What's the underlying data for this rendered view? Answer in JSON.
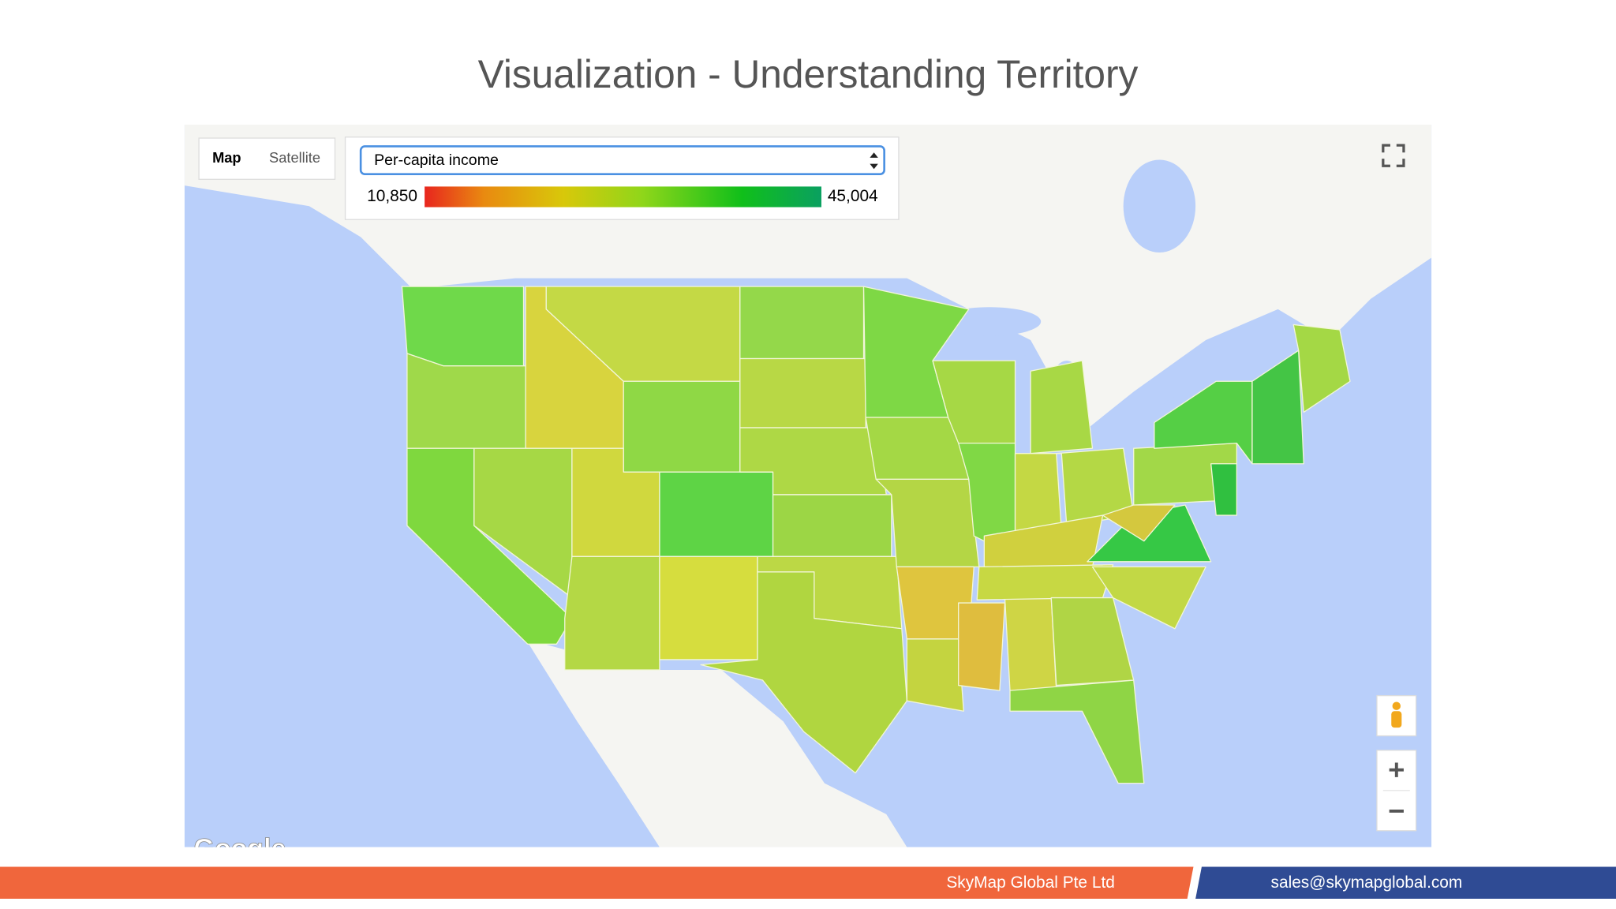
{
  "title": "Visualization - Understanding Territory",
  "map": {
    "map_type_buttons": [
      "Map",
      "Satellite"
    ],
    "selector": "Per-capita income",
    "legend": {
      "min": "10,850",
      "max": "45,004"
    },
    "attribution": "Google"
  },
  "footer": {
    "company": "SkyMap Global Pte Ltd",
    "email": "sales@skymapglobal.com"
  }
}
